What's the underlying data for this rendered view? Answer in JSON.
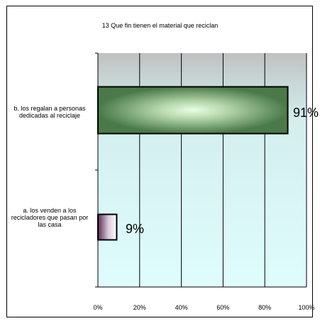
{
  "chart_data": {
    "type": "bar",
    "orientation": "horizontal",
    "title": "13 Que fin tienen el material que reciclan",
    "categories": [
      "b. los regalan a personas dedicadas al reciclaje",
      "a. los venden a los recicladores que pasan por las casa"
    ],
    "values": [
      91,
      9
    ],
    "data_labels": [
      "91%",
      "9%"
    ],
    "x_ticks": [
      "0%",
      "20%",
      "40%",
      "60%",
      "80%",
      "100%"
    ],
    "xlim": [
      0,
      100
    ],
    "grid": true,
    "legend": "none",
    "colors": {
      "bar_b_edge": "#4a7a4a",
      "bar_b_center": "#e6ffe3",
      "bar_a_edge": "#5a2a55",
      "bar_a_center": "#ffffff",
      "plot_top": "#c0c0c0",
      "plot_bottom": "#dffdfd",
      "axis": "#000000"
    }
  }
}
